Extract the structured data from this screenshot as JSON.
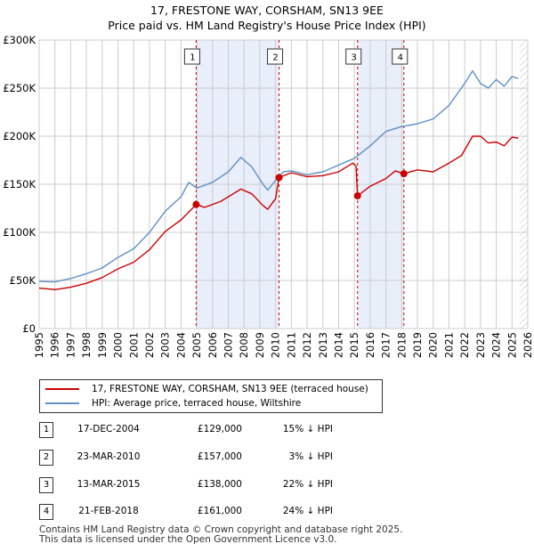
{
  "title": "17, FRESTONE WAY, CORSHAM, SN13 9EE",
  "subtitle": "Price paid vs. HM Land Registry's House Price Index (HPI)",
  "colors": {
    "red": "#cc0000",
    "blue": "#6090c8",
    "shade": "#e8eefa",
    "grid": "#cccccc",
    "vline": "#cc0000"
  },
  "chart_data": {
    "type": "line",
    "title": "17, FRESTONE WAY, CORSHAM, SN13 9EE",
    "subtitle": "Price paid vs. HM Land Registry's House Price Index (HPI)",
    "xlabel": "",
    "ylabel": "",
    "xlim": [
      1995.0,
      2026.0
    ],
    "ylim": [
      0,
      300000
    ],
    "x_ticks": [
      1995,
      1996,
      1997,
      1998,
      1999,
      2000,
      2001,
      2002,
      2003,
      2004,
      2005,
      2006,
      2007,
      2008,
      2009,
      2010,
      2011,
      2012,
      2013,
      2014,
      2015,
      2016,
      2017,
      2018,
      2019,
      2020,
      2021,
      2022,
      2023,
      2024,
      2025,
      2026
    ],
    "y_ticks": [
      {
        "value": 0,
        "label": "£0"
      },
      {
        "value": 50000,
        "label": "£50K"
      },
      {
        "value": 100000,
        "label": "£100K"
      },
      {
        "value": 150000,
        "label": "£150K"
      },
      {
        "value": 200000,
        "label": "£200K"
      },
      {
        "value": 250000,
        "label": "£250K"
      },
      {
        "value": 300000,
        "label": "£300K"
      }
    ],
    "shaded_regions": [
      [
        2004.96,
        2010.22
      ],
      [
        2015.2,
        2018.14
      ]
    ],
    "future_hatch_from": 2025.5,
    "series": [
      {
        "name": "17, FRESTONE WAY, CORSHAM, SN13 9EE (terraced house)",
        "color": "#cc0000",
        "points": [
          [
            1995.0,
            42000
          ],
          [
            1996.0,
            40500
          ],
          [
            1997.0,
            43000
          ],
          [
            1998.0,
            47000
          ],
          [
            1999.0,
            53000
          ],
          [
            2000.0,
            62000
          ],
          [
            2001.0,
            69000
          ],
          [
            2002.0,
            82000
          ],
          [
            2003.0,
            101000
          ],
          [
            2004.0,
            113000
          ],
          [
            2004.96,
            129000
          ],
          [
            2005.5,
            126000
          ],
          [
            2006.5,
            132000
          ],
          [
            2007.8,
            145000
          ],
          [
            2008.5,
            140000
          ],
          [
            2009.2,
            128000
          ],
          [
            2009.5,
            124000
          ],
          [
            2010.0,
            135000
          ],
          [
            2010.22,
            157000
          ],
          [
            2011.0,
            162000
          ],
          [
            2012.0,
            158000
          ],
          [
            2013.0,
            159000
          ],
          [
            2014.0,
            163000
          ],
          [
            2014.9,
            172000
          ],
          [
            2015.1,
            169000
          ],
          [
            2015.2,
            138000
          ],
          [
            2016.0,
            148000
          ],
          [
            2017.0,
            156000
          ],
          [
            2017.6,
            164000
          ],
          [
            2018.14,
            161000
          ],
          [
            2019.0,
            165000
          ],
          [
            2020.0,
            163000
          ],
          [
            2021.0,
            172000
          ],
          [
            2021.8,
            180000
          ],
          [
            2022.5,
            200000
          ],
          [
            2023.0,
            200000
          ],
          [
            2023.5,
            193000
          ],
          [
            2024.0,
            194000
          ],
          [
            2024.5,
            190000
          ],
          [
            2025.0,
            199000
          ],
          [
            2025.4,
            198000
          ]
        ]
      },
      {
        "name": "HPI: Average price, terraced house, Wiltshire",
        "color": "#6090c8",
        "points": [
          [
            1995.0,
            49000
          ],
          [
            1996.0,
            48500
          ],
          [
            1997.0,
            52000
          ],
          [
            1998.0,
            57000
          ],
          [
            1999.0,
            63000
          ],
          [
            2000.0,
            74000
          ],
          [
            2001.0,
            83000
          ],
          [
            2002.0,
            100000
          ],
          [
            2003.0,
            122000
          ],
          [
            2004.0,
            137000
          ],
          [
            2004.5,
            152000
          ],
          [
            2005.0,
            146000
          ],
          [
            2006.0,
            152000
          ],
          [
            2007.0,
            163000
          ],
          [
            2007.8,
            178000
          ],
          [
            2008.5,
            168000
          ],
          [
            2009.2,
            150000
          ],
          [
            2009.5,
            144000
          ],
          [
            2010.0,
            154000
          ],
          [
            2010.5,
            163000
          ],
          [
            2011.0,
            164000
          ],
          [
            2012.0,
            160000
          ],
          [
            2013.0,
            163000
          ],
          [
            2014.0,
            170000
          ],
          [
            2015.0,
            177000
          ],
          [
            2016.0,
            190000
          ],
          [
            2017.0,
            205000
          ],
          [
            2018.0,
            210000
          ],
          [
            2019.0,
            213000
          ],
          [
            2020.0,
            218000
          ],
          [
            2021.0,
            232000
          ],
          [
            2022.0,
            255000
          ],
          [
            2022.5,
            268000
          ],
          [
            2023.0,
            255000
          ],
          [
            2023.5,
            250000
          ],
          [
            2024.0,
            259000
          ],
          [
            2024.5,
            252000
          ],
          [
            2025.0,
            262000
          ],
          [
            2025.4,
            260000
          ]
        ]
      }
    ],
    "sales": [
      {
        "label": "1",
        "date": "17-DEC-2004",
        "x": 2004.96,
        "price": 129000,
        "price_text": "£129,000",
        "hpi_text": "15% ↓ HPI"
      },
      {
        "label": "2",
        "date": "23-MAR-2010",
        "x": 2010.22,
        "price": 157000,
        "price_text": "£157,000",
        "hpi_text": "3% ↓ HPI"
      },
      {
        "label": "3",
        "date": "13-MAR-2015",
        "x": 2015.2,
        "price": 138000,
        "price_text": "£138,000",
        "hpi_text": "22% ↓ HPI"
      },
      {
        "label": "4",
        "date": "21-FEB-2018",
        "x": 2018.14,
        "price": 161000,
        "price_text": "£161,000",
        "hpi_text": "24% ↓ HPI"
      }
    ]
  },
  "legend": {
    "red_label": "17, FRESTONE WAY, CORSHAM, SN13 9EE (terraced house)",
    "blue_label": "HPI: Average price, terraced house, Wiltshire"
  },
  "footer": {
    "line1": "Contains HM Land Registry data © Crown copyright and database right 2025.",
    "line2": "This data is licensed under the Open Government Licence v3.0."
  }
}
